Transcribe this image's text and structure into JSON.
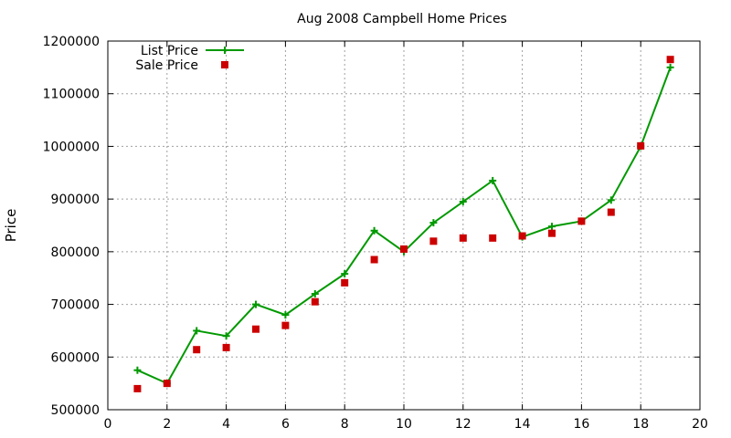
{
  "chart_data": {
    "type": "line",
    "title": "Aug 2008 Campbell Home Prices",
    "xlabel": "",
    "ylabel": "Price",
    "xlim": [
      0,
      20
    ],
    "ylim": [
      500000,
      1200000
    ],
    "xticks": [
      0,
      2,
      4,
      6,
      8,
      10,
      12,
      14,
      16,
      18,
      20
    ],
    "yticks": [
      500000,
      600000,
      700000,
      800000,
      900000,
      1000000,
      1100000,
      1200000
    ],
    "grid": true,
    "legend_position": "top-left",
    "x": [
      1,
      2,
      3,
      4,
      5,
      6,
      7,
      8,
      9,
      10,
      11,
      12,
      13,
      14,
      15,
      16,
      17,
      18,
      19
    ],
    "series": [
      {
        "name": "List Price",
        "style": "line-plus",
        "color": "#009900",
        "values": [
          575000,
          550000,
          650000,
          640000,
          700000,
          680000,
          720000,
          758000,
          840000,
          800000,
          855000,
          895000,
          935000,
          828000,
          848000,
          858000,
          898000,
          1000000,
          1150000
        ]
      },
      {
        "name": "Sale Price",
        "style": "square",
        "color": "#cc0000",
        "values": [
          540000,
          550000,
          614000,
          618000,
          653000,
          660000,
          705000,
          741000,
          785000,
          805000,
          820000,
          826000,
          826000,
          830000,
          835000,
          858000,
          875000,
          1001000,
          1165000
        ]
      }
    ]
  }
}
